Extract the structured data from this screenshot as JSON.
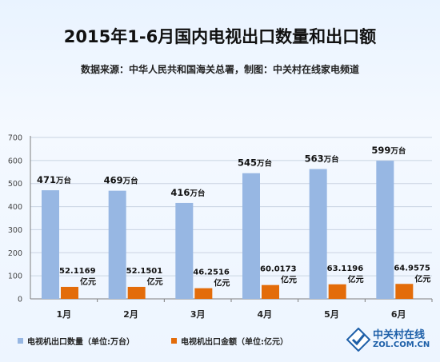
{
  "title": "2015年1-6月国内电视出口数量和出口额",
  "subtitle": "数据来源：中华人民共和国海关总署，制图：中关村在线家电频道",
  "legend": {
    "qty": "电视机出口数量（单位:万台）",
    "amount": "电视机出口金额（单位:亿元）"
  },
  "logo": {
    "cn": "中关村在线",
    "en": "ZOL.COM.CN"
  },
  "colors": {
    "qty": "#97b7e3",
    "amount": "#e36c0a",
    "axis": "#7f7f7f",
    "grid": "#c9d4e2"
  },
  "chart_data": {
    "type": "bar",
    "categories": [
      "1月",
      "2月",
      "3月",
      "4月",
      "5月",
      "6月"
    ],
    "series": [
      {
        "name": "电视机出口数量（单位:万台）",
        "values": [
          471,
          469,
          416,
          545,
          563,
          599
        ],
        "label_unit": "万台"
      },
      {
        "name": "电视机出口金额（单位:亿元）",
        "values": [
          52.1169,
          52.1501,
          46.2516,
          60.0173,
          63.1196,
          64.9575
        ],
        "label_unit": "亿元"
      }
    ],
    "yticks": [
      0,
      100,
      200,
      300,
      400,
      500,
      600,
      700
    ],
    "ylim": [
      0,
      700
    ]
  }
}
